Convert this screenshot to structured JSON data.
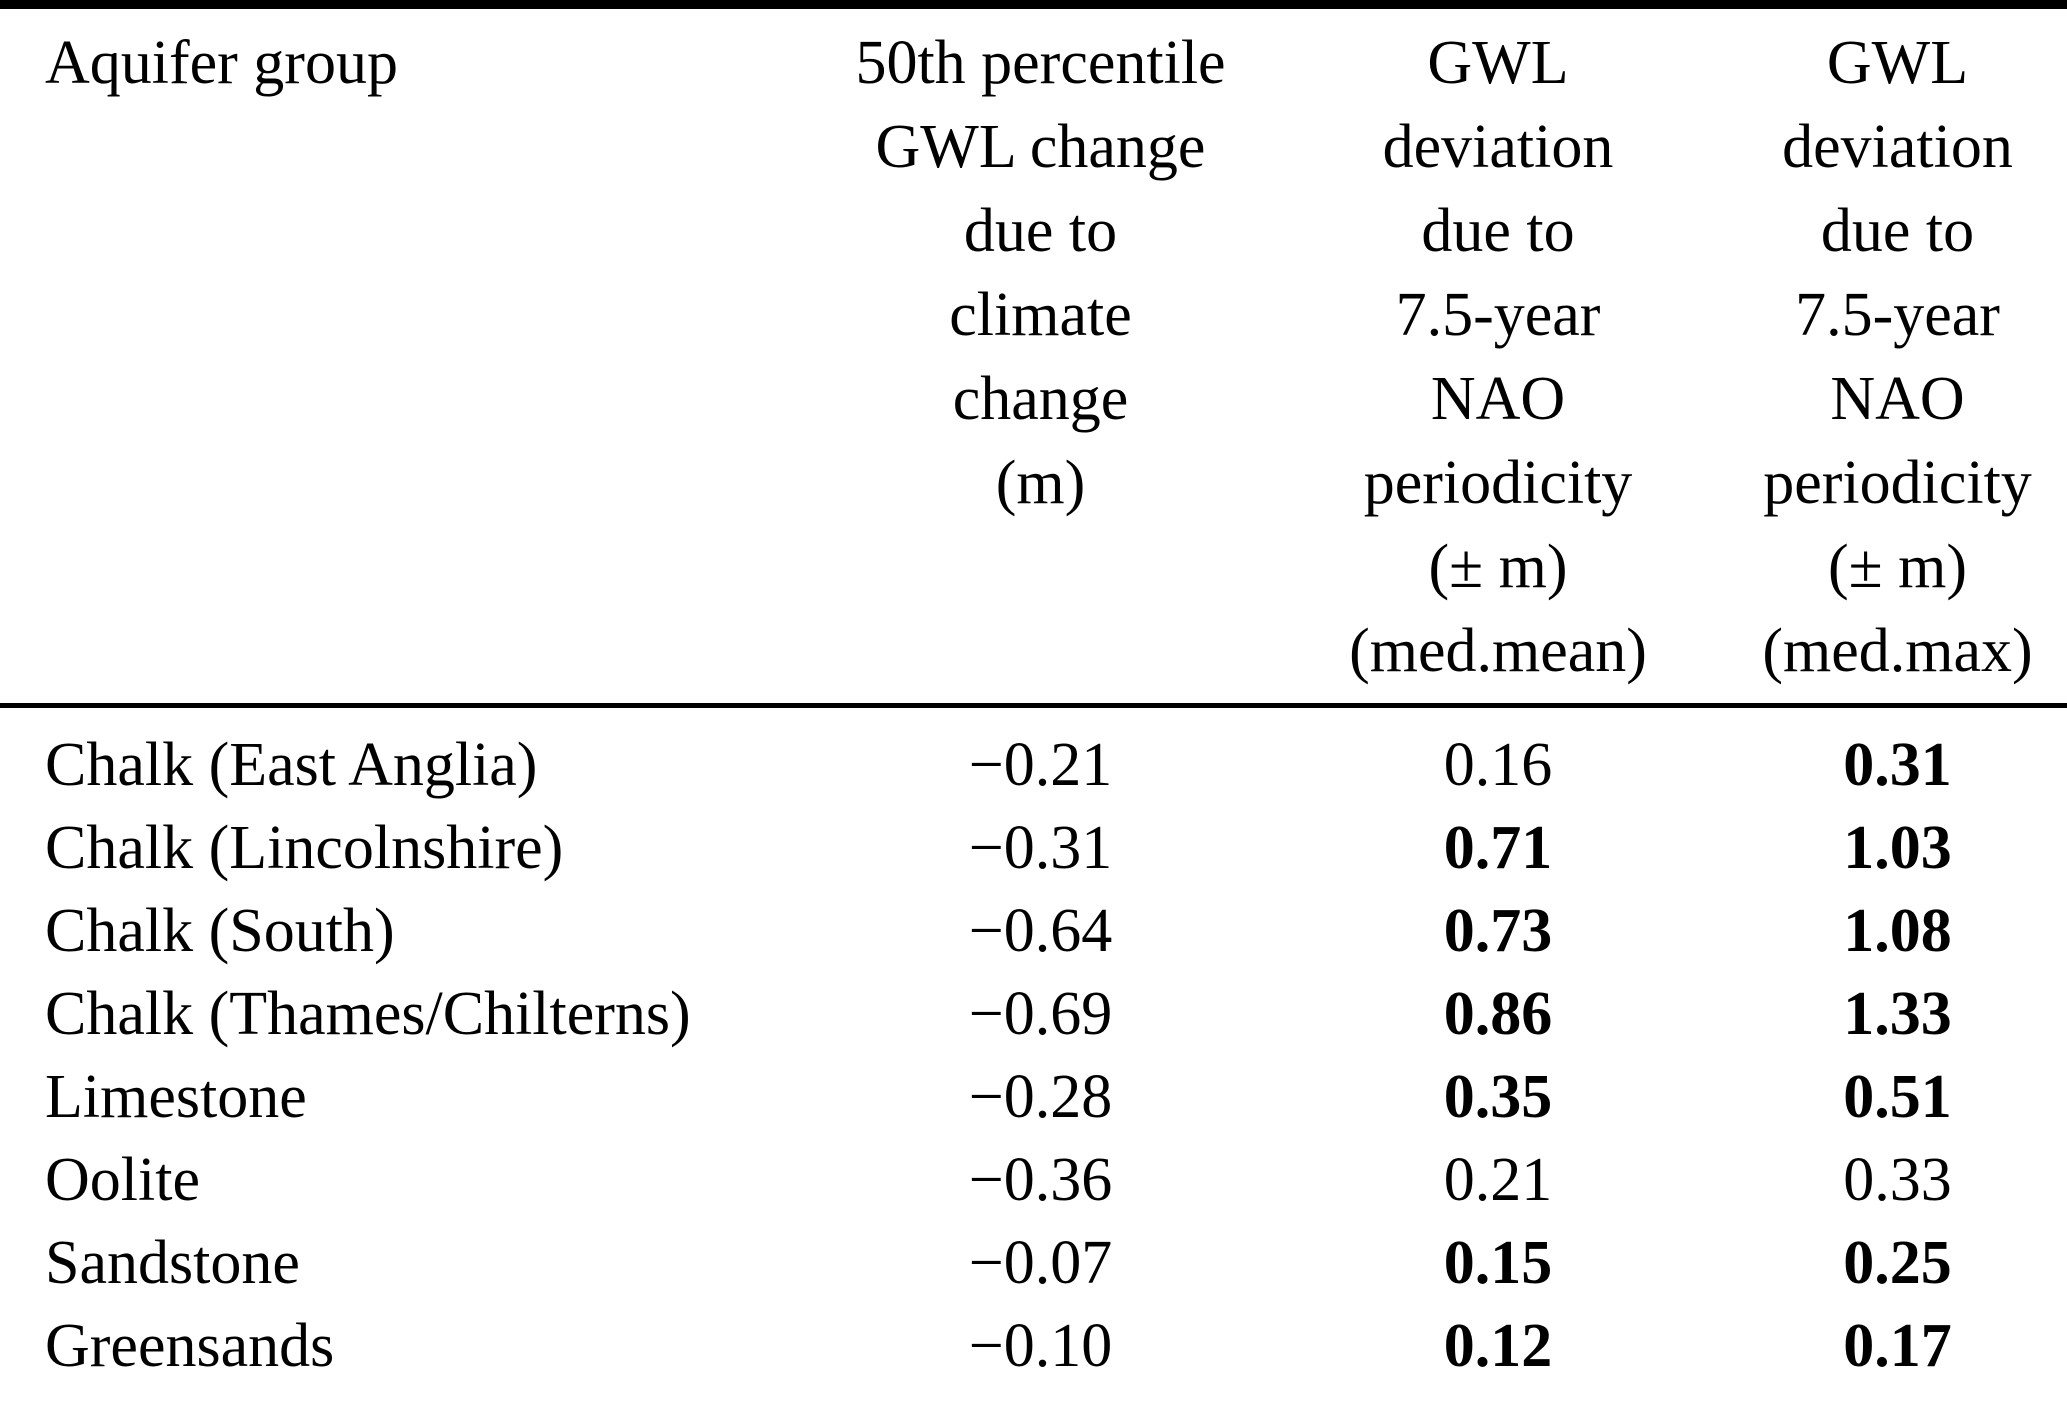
{
  "header": {
    "col1": "Aquifer group",
    "col2_lines": [
      "50th percentile",
      "GWL change",
      "due to",
      "climate",
      "change",
      "(m)"
    ],
    "col3_lines": [
      "GWL",
      "deviation",
      "due to",
      "7.5-year",
      "NAO",
      "periodicity",
      "(± m)",
      "(med.mean)"
    ],
    "col4_lines": [
      "GWL",
      "deviation",
      "due to",
      "7.5-year",
      "NAO",
      "periodicity",
      "(± m)",
      "(med.max)"
    ]
  },
  "rows": [
    {
      "aquifer": "Chalk (East Anglia)",
      "change": "−0.21",
      "med_mean": "0.16",
      "med_mean_bold": false,
      "med_max": "0.31",
      "med_max_bold": true
    },
    {
      "aquifer": "Chalk (Lincolnshire)",
      "change": "−0.31",
      "med_mean": "0.71",
      "med_mean_bold": true,
      "med_max": "1.03",
      "med_max_bold": true
    },
    {
      "aquifer": "Chalk (South)",
      "change": "−0.64",
      "med_mean": "0.73",
      "med_mean_bold": true,
      "med_max": "1.08",
      "med_max_bold": true
    },
    {
      "aquifer": "Chalk (Thames/Chilterns)",
      "change": "−0.69",
      "med_mean": "0.86",
      "med_mean_bold": true,
      "med_max": "1.33",
      "med_max_bold": true
    },
    {
      "aquifer": "Limestone",
      "change": "−0.28",
      "med_mean": "0.35",
      "med_mean_bold": true,
      "med_max": "0.51",
      "med_max_bold": true
    },
    {
      "aquifer": "Oolite",
      "change": "−0.36",
      "med_mean": "0.21",
      "med_mean_bold": false,
      "med_max": "0.33",
      "med_max_bold": false
    },
    {
      "aquifer": "Sandstone",
      "change": "−0.07",
      "med_mean": "0.15",
      "med_mean_bold": true,
      "med_max": "0.25",
      "med_max_bold": true
    },
    {
      "aquifer": "Greensands",
      "change": "−0.10",
      "med_mean": "0.12",
      "med_mean_bold": true,
      "med_max": "0.17",
      "med_max_bold": true
    }
  ],
  "colors": {
    "text": "#000000",
    "background": "#ffffff",
    "rule": "#000000"
  }
}
